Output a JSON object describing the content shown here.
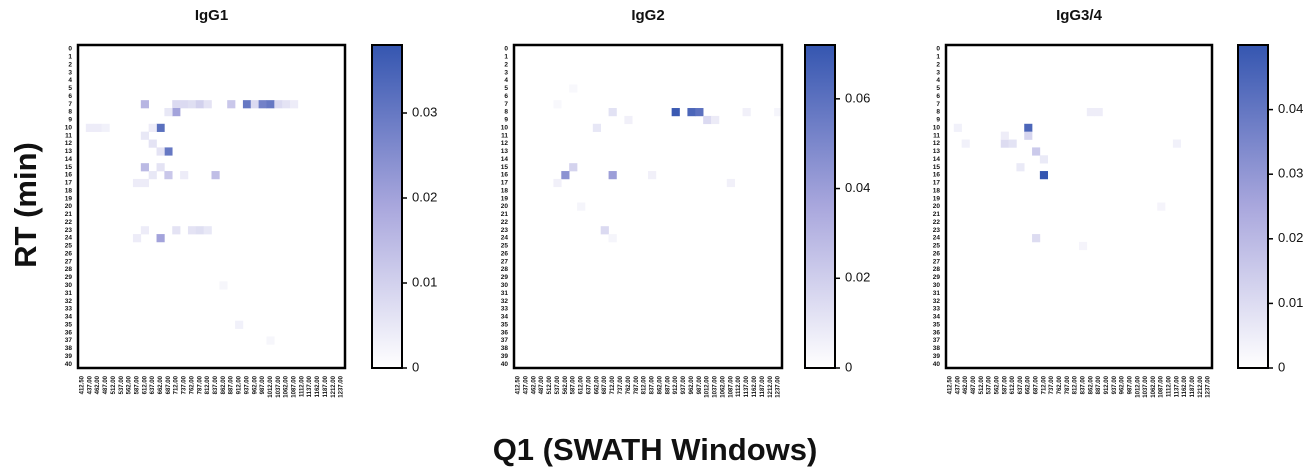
{
  "y_label": "RT (min)",
  "x_label": "Q1 (SWATH Windows)",
  "chart_data": [
    {
      "type": "heatmap",
      "title": "IgG1",
      "categories": [
        "412.50",
        "437.00",
        "462.00",
        "487.00",
        "512.00",
        "537.00",
        "562.00",
        "587.00",
        "612.00",
        "637.00",
        "662.00",
        "687.00",
        "712.00",
        "737.00",
        "762.00",
        "787.00",
        "812.00",
        "837.00",
        "862.00",
        "887.00",
        "912.00",
        "937.00",
        "962.00",
        "987.00",
        "1012.00",
        "1037.00",
        "1062.00",
        "1087.00",
        "1112.00",
        "1137.00",
        "1162.00",
        "1187.00",
        "1212.00",
        "1237.00"
      ],
      "rows": [
        0,
        1,
        2,
        3,
        4,
        5,
        6,
        7,
        8,
        9,
        10,
        11,
        12,
        13,
        14,
        15,
        16,
        17,
        18,
        19,
        20,
        21,
        22,
        23,
        24,
        25,
        26,
        27,
        28,
        29,
        30,
        31,
        32,
        33,
        34,
        35,
        36,
        37,
        38,
        39,
        40
      ],
      "x": [
        612,
        712,
        737,
        762,
        787,
        812,
        887,
        937,
        962,
        987,
        1012,
        1037,
        1062,
        1087,
        712,
        687,
        662,
        437,
        462,
        487,
        637,
        612,
        637,
        687,
        662,
        612,
        662,
        687,
        637,
        837,
        737,
        612,
        587,
        662,
        712,
        762,
        787,
        812,
        612,
        587,
        862,
        912,
        1012
      ],
      "y": [
        7,
        7,
        7,
        7,
        7,
        7,
        7,
        7,
        7,
        7,
        7,
        7,
        7,
        7,
        8,
        8,
        10,
        10,
        10,
        10,
        10,
        11,
        12,
        13,
        13,
        15,
        15,
        16,
        16,
        16,
        16,
        17,
        17,
        24,
        23,
        23,
        23,
        23,
        23,
        24,
        30,
        35,
        37
      ],
      "values": [
        0.016,
        0.008,
        0.008,
        0.007,
        0.01,
        0.006,
        0.012,
        0.03,
        0.008,
        0.028,
        0.03,
        0.008,
        0.006,
        0.004,
        0.02,
        0.005,
        0.032,
        0.004,
        0.004,
        0.003,
        0.004,
        0.005,
        0.006,
        0.03,
        0.006,
        0.015,
        0.006,
        0.012,
        0.005,
        0.014,
        0.004,
        0.004,
        0.004,
        0.02,
        0.006,
        0.006,
        0.007,
        0.005,
        0.004,
        0.004,
        0.002,
        0.003,
        0.002
      ],
      "colors": [
        "#ffffff",
        "#a9a7dd",
        "#3556b0"
      ],
      "zlim": [
        0,
        0.038
      ],
      "zticks": [
        0,
        0.01,
        0.02,
        0.03
      ]
    },
    {
      "type": "heatmap",
      "title": "IgG2",
      "categories": [
        "412.50",
        "437.00",
        "462.00",
        "487.00",
        "512.00",
        "537.00",
        "562.00",
        "587.00",
        "612.00",
        "637.00",
        "662.00",
        "687.00",
        "712.00",
        "737.00",
        "762.00",
        "787.00",
        "812.00",
        "837.00",
        "862.00",
        "887.00",
        "912.00",
        "937.00",
        "962.00",
        "987.00",
        "1012.00",
        "1037.00",
        "1062.00",
        "1087.00",
        "1112.00",
        "1137.00",
        "1162.00",
        "1187.00",
        "1212.00",
        "1237.00"
      ],
      "rows": [
        0,
        1,
        2,
        3,
        4,
        5,
        6,
        7,
        8,
        9,
        10,
        11,
        12,
        13,
        14,
        15,
        16,
        17,
        18,
        19,
        20,
        21,
        22,
        23,
        24,
        25,
        26,
        27,
        28,
        29,
        30,
        31,
        32,
        33,
        34,
        35,
        36,
        37,
        38,
        39,
        40
      ],
      "x": [
        912,
        962,
        987,
        712,
        1012,
        1037,
        1137,
        662,
        762,
        587,
        562,
        712,
        837,
        537,
        1087,
        612,
        687,
        712,
        587,
        537,
        1237
      ],
      "y": [
        8,
        8,
        8,
        8,
        9,
        9,
        8,
        10,
        9,
        15,
        16,
        16,
        16,
        17,
        17,
        20,
        23,
        24,
        5,
        7,
        8
      ],
      "values": [
        0.07,
        0.065,
        0.06,
        0.012,
        0.015,
        0.008,
        0.006,
        0.01,
        0.006,
        0.018,
        0.045,
        0.04,
        0.006,
        0.006,
        0.006,
        0.004,
        0.015,
        0.004,
        0.003,
        0.003,
        0.004
      ],
      "colors": [
        "#ffffff",
        "#a9a7dd",
        "#3556b0"
      ],
      "zlim": [
        0,
        0.072
      ],
      "zticks": [
        0,
        0.02,
        0.04,
        0.06
      ]
    },
    {
      "type": "heatmap",
      "title": "IgG3/4",
      "categories": [
        "412.50",
        "437.00",
        "462.00",
        "487.00",
        "512.00",
        "537.00",
        "562.00",
        "587.00",
        "612.00",
        "637.00",
        "662.00",
        "687.00",
        "712.00",
        "737.00",
        "762.00",
        "787.00",
        "812.00",
        "837.00",
        "862.00",
        "887.00",
        "912.00",
        "937.00",
        "962.00",
        "987.00",
        "1012.00",
        "1037.00",
        "1062.00",
        "1087.00",
        "1112.00",
        "1137.00",
        "1162.00",
        "1187.00",
        "1212.00",
        "1237.00"
      ],
      "rows": [
        0,
        1,
        2,
        3,
        4,
        5,
        6,
        7,
        8,
        9,
        10,
        11,
        12,
        13,
        14,
        15,
        16,
        17,
        18,
        19,
        20,
        21,
        22,
        23,
        24,
        25,
        26,
        27,
        28,
        29,
        30,
        31,
        32,
        33,
        34,
        35,
        36,
        37,
        38,
        39,
        40
      ],
      "x": [
        662,
        662,
        587,
        612,
        687,
        712,
        637,
        687,
        862,
        887,
        462,
        712,
        587,
        1087,
        1137,
        437,
        837
      ],
      "y": [
        10,
        11,
        12,
        12,
        13,
        16,
        15,
        24,
        8,
        8,
        12,
        14,
        11,
        20,
        12,
        10,
        25
      ],
      "values": [
        0.045,
        0.012,
        0.01,
        0.008,
        0.015,
        0.05,
        0.006,
        0.01,
        0.005,
        0.005,
        0.004,
        0.006,
        0.005,
        0.003,
        0.004,
        0.004,
        0.003
      ],
      "colors": [
        "#ffffff",
        "#a9a7dd",
        "#3556b0"
      ],
      "zlim": [
        0,
        0.05
      ],
      "zticks": [
        0,
        0.01,
        0.02,
        0.03,
        0.04
      ]
    }
  ]
}
